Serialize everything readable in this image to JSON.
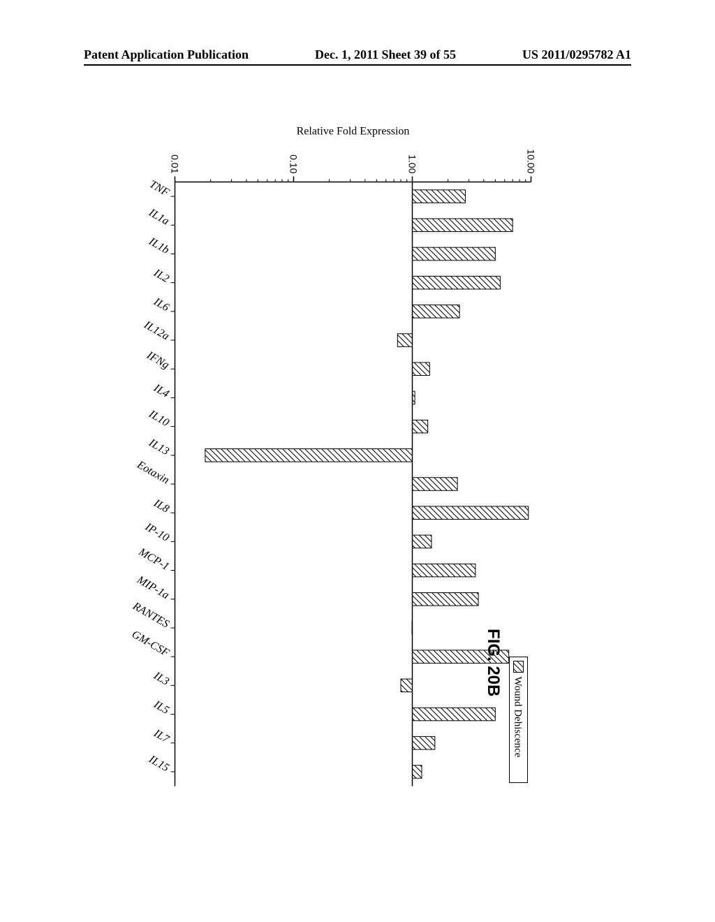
{
  "header": {
    "left": "Patent Application Publication",
    "center": "Dec. 1, 2011  Sheet 39 of 55",
    "right": "US 2011/0295782 A1"
  },
  "figure_label": "FIG. 20B",
  "chart": {
    "type": "bar",
    "y_axis_label": "Relative Fold Expression",
    "y_scale": "log",
    "y_ticks": [
      0.01,
      0.1,
      1.0,
      10.0
    ],
    "legend_label": "Wound Dehiscence",
    "categories": [
      "TNF",
      "IL1a",
      "IL1b",
      "IL2",
      "IL6",
      "IL12a",
      "IFNg",
      "IL4",
      "IL10",
      "IL13",
      "Eotaxin",
      "IL8",
      "IP-10",
      "MCP-1",
      "MIP-1a",
      "RANTES",
      "GM-CSF",
      "IL3",
      "IL5",
      "IL7",
      "IL15"
    ],
    "values": [
      2.8,
      7.0,
      5.0,
      5.5,
      2.5,
      0.75,
      1.4,
      1.05,
      1.35,
      0.018,
      2.4,
      9.5,
      1.45,
      3.4,
      3.6,
      1.0,
      6.5,
      0.8,
      5.0,
      1.55,
      1.2
    ],
    "bar_fill": "#ffffff",
    "bar_stroke": "#000000",
    "hatch_stroke": "#000000",
    "background": "#ffffff",
    "axis_color": "#000000",
    "label_font": "italic 16px 'Times New Roman', serif",
    "tick_font": "14px Arial, sans-serif",
    "axis_label_font": "16px 'Times New Roman', serif",
    "bar_width_ratio": 0.45
  }
}
